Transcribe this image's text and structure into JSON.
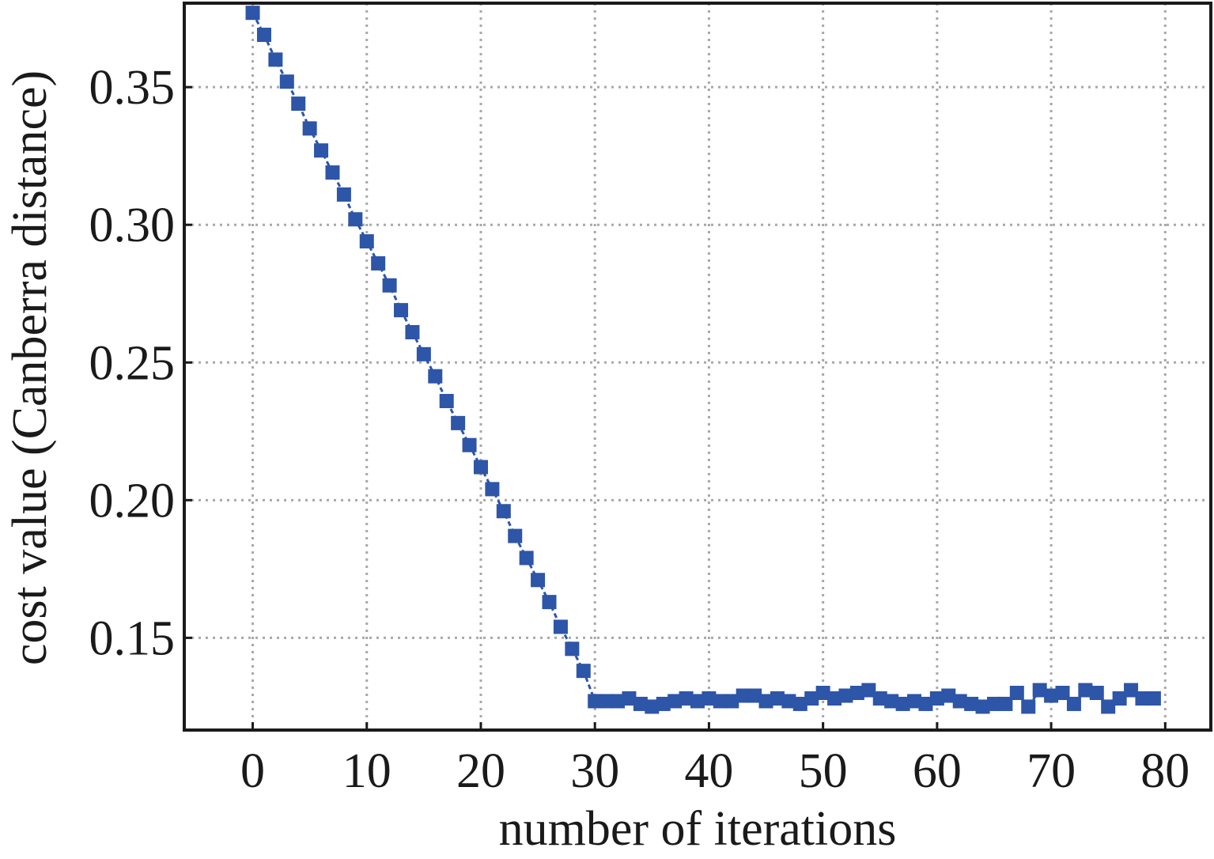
{
  "chart_data": {
    "type": "line",
    "title": "",
    "xlabel": "number of iterations",
    "ylabel": "cost value (Canberra distance)",
    "xlim": [
      -6,
      84
    ],
    "ylim": [
      0.1165,
      0.3805
    ],
    "xticks": [
      0,
      10,
      20,
      30,
      40,
      50,
      60,
      70,
      80
    ],
    "xtick_labels": [
      "0",
      "10",
      "20",
      "30",
      "40",
      "50",
      "60",
      "70",
      "80"
    ],
    "yticks": [
      0.15,
      0.2,
      0.25,
      0.3,
      0.35
    ],
    "ytick_labels": [
      "0.15",
      "0.20",
      "0.25",
      "0.30",
      "0.35"
    ],
    "grid": true,
    "marker": "square",
    "line_style": "dashed",
    "series": [
      {
        "color": "#2d55a8",
        "x": [
          0,
          1,
          2,
          3,
          4,
          5,
          6,
          7,
          8,
          9,
          10,
          11,
          12,
          13,
          14,
          15,
          16,
          17,
          18,
          19,
          20,
          21,
          22,
          23,
          24,
          25,
          26,
          27,
          28,
          29,
          30,
          31,
          32,
          33,
          34,
          35,
          36,
          37,
          38,
          39,
          40,
          41,
          42,
          43,
          44,
          45,
          46,
          47,
          48,
          49,
          50,
          51,
          52,
          53,
          54,
          55,
          56,
          57,
          58,
          59,
          60,
          61,
          62,
          63,
          64,
          65,
          66,
          67,
          68,
          69,
          70,
          71,
          72,
          73,
          74,
          75,
          76,
          77,
          78,
          79
        ],
        "y": [
          0.377,
          0.369,
          0.36,
          0.352,
          0.344,
          0.335,
          0.327,
          0.319,
          0.311,
          0.302,
          0.294,
          0.286,
          0.278,
          0.269,
          0.261,
          0.253,
          0.245,
          0.236,
          0.228,
          0.22,
          0.212,
          0.204,
          0.196,
          0.187,
          0.179,
          0.171,
          0.163,
          0.154,
          0.146,
          0.138,
          0.127,
          0.127,
          0.127,
          0.128,
          0.126,
          0.125,
          0.126,
          0.127,
          0.128,
          0.127,
          0.128,
          0.127,
          0.127,
          0.129,
          0.129,
          0.127,
          0.128,
          0.127,
          0.126,
          0.128,
          0.13,
          0.128,
          0.129,
          0.13,
          0.131,
          0.128,
          0.127,
          0.126,
          0.127,
          0.126,
          0.128,
          0.129,
          0.127,
          0.126,
          0.125,
          0.126,
          0.126,
          0.13,
          0.125,
          0.131,
          0.129,
          0.13,
          0.126,
          0.131,
          0.13,
          0.125,
          0.128,
          0.131,
          0.128,
          0.128
        ]
      }
    ]
  }
}
